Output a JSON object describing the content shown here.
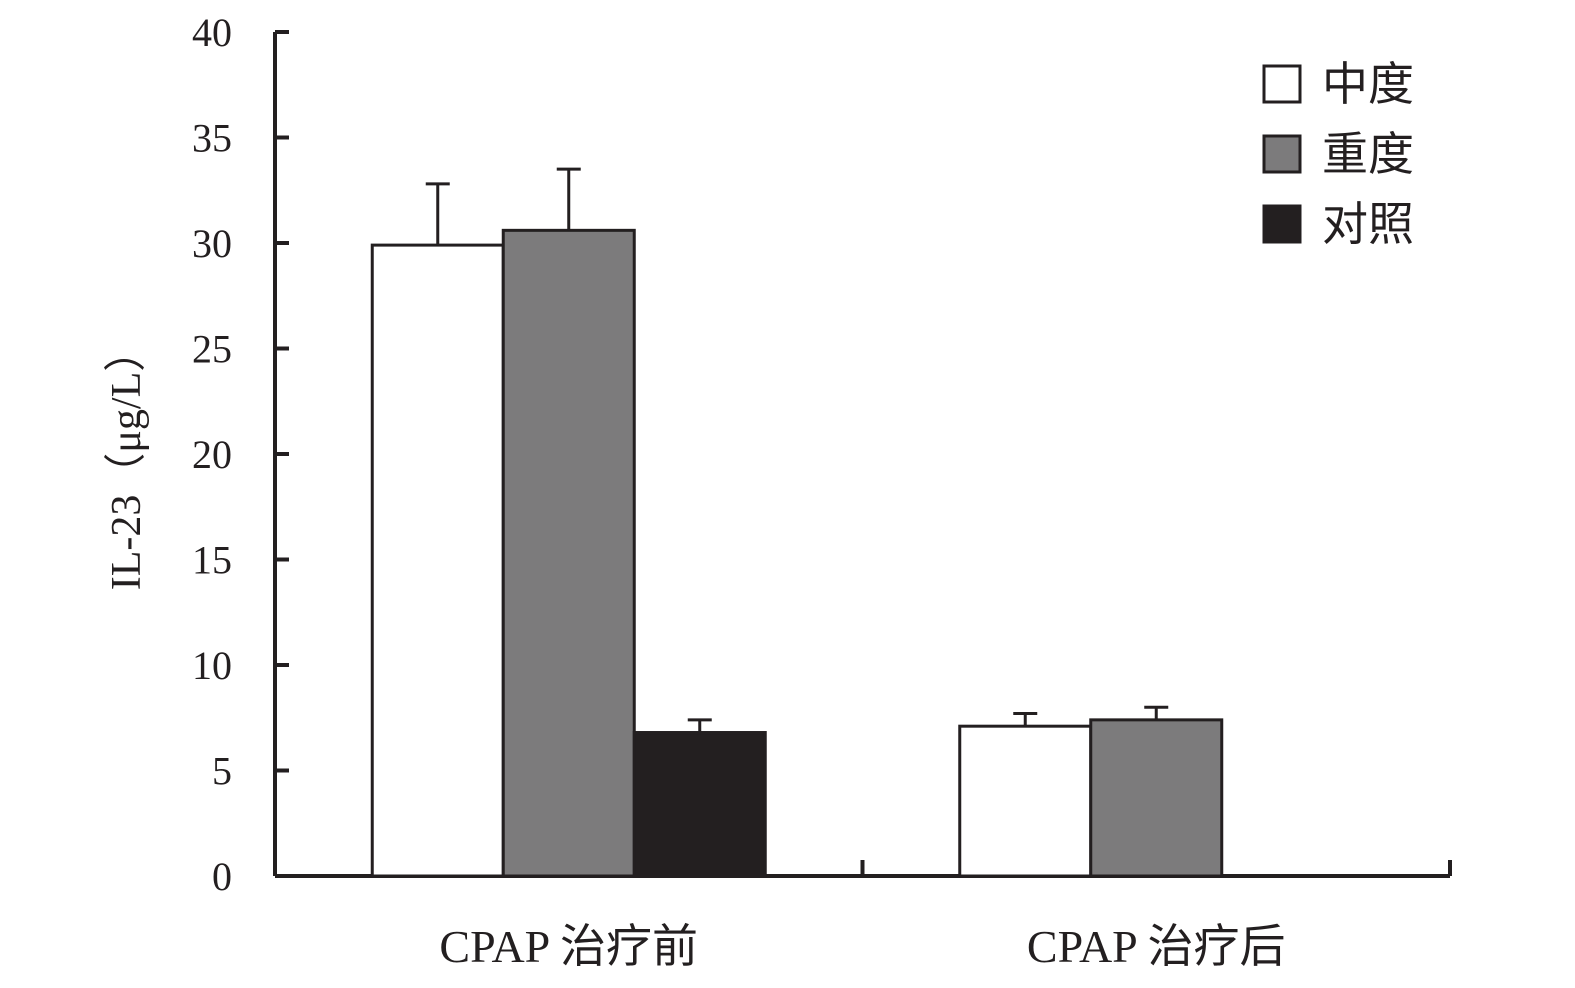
{
  "chart_data": {
    "type": "bar",
    "title": "",
    "xlabel": "",
    "ylabel": "IL-23（μg/L）",
    "ylim": [
      0,
      40
    ],
    "yticks": [
      0,
      5,
      10,
      15,
      20,
      25,
      30,
      35,
      40
    ],
    "categories": [
      "CPAP 治疗前",
      "CPAP 治疗后"
    ],
    "series": [
      {
        "name": "中度",
        "color": "#ffffff",
        "values": [
          29.9,
          7.1
        ],
        "errors": [
          2.9,
          0.6
        ]
      },
      {
        "name": "重度",
        "color": "#7c7b7c",
        "values": [
          30.6,
          7.4
        ],
        "errors": [
          2.9,
          0.6
        ]
      },
      {
        "name": "对照",
        "color": "#231f20",
        "values": [
          6.8,
          null
        ],
        "errors": [
          0.6,
          null
        ]
      }
    ],
    "legend": "top-right",
    "grid": false
  }
}
